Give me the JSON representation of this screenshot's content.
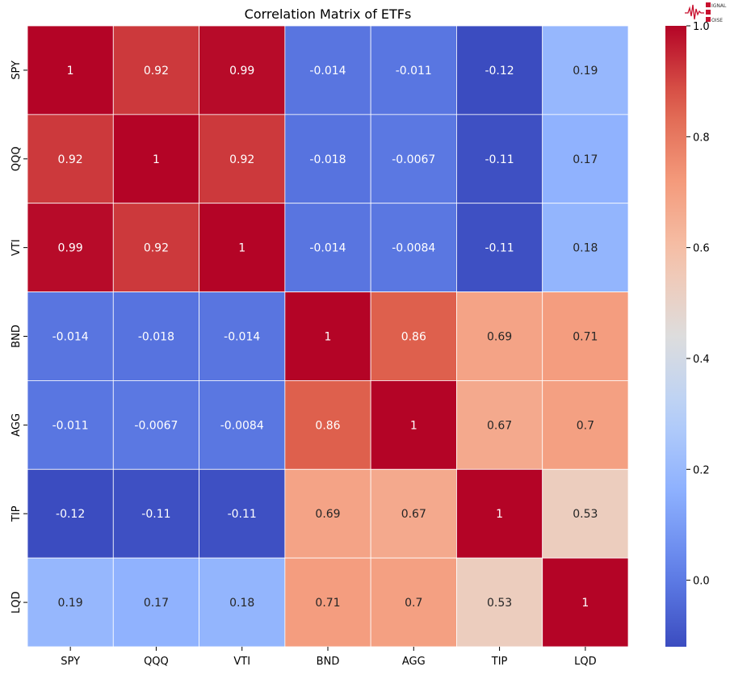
{
  "chart_data": {
    "type": "heatmap",
    "title": "Correlation Matrix of ETFs",
    "xlabel": "",
    "ylabel": "",
    "x_categories": [
      "SPY",
      "QQQ",
      "VTI",
      "BND",
      "AGG",
      "TIP",
      "LQD"
    ],
    "y_categories": [
      "SPY",
      "QQQ",
      "VTI",
      "BND",
      "AGG",
      "TIP",
      "LQD"
    ],
    "values": [
      [
        1,
        0.92,
        0.99,
        -0.014,
        -0.011,
        -0.12,
        0.19
      ],
      [
        0.92,
        1,
        0.92,
        -0.018,
        -0.0067,
        -0.11,
        0.17
      ],
      [
        0.99,
        0.92,
        1,
        -0.014,
        -0.0084,
        -0.11,
        0.18
      ],
      [
        -0.014,
        -0.018,
        -0.014,
        1,
        0.86,
        0.69,
        0.71
      ],
      [
        -0.011,
        -0.0067,
        -0.0084,
        0.86,
        1,
        0.67,
        0.7
      ],
      [
        -0.12,
        -0.11,
        -0.11,
        0.69,
        0.67,
        1,
        0.53
      ],
      [
        0.19,
        0.17,
        0.18,
        0.71,
        0.7,
        0.53,
        1
      ]
    ],
    "colormap": "coolwarm",
    "color_range": [
      -0.12,
      1.0
    ],
    "colorbar_ticks": [
      "0.0",
      "0.2",
      "0.4",
      "0.6",
      "0.8",
      "1.0"
    ],
    "annotations": true,
    "grid_lines_color": "#ffffff"
  },
  "logo": {
    "text": "SIGNAL 2 NOISE",
    "color": "#c8102e"
  }
}
